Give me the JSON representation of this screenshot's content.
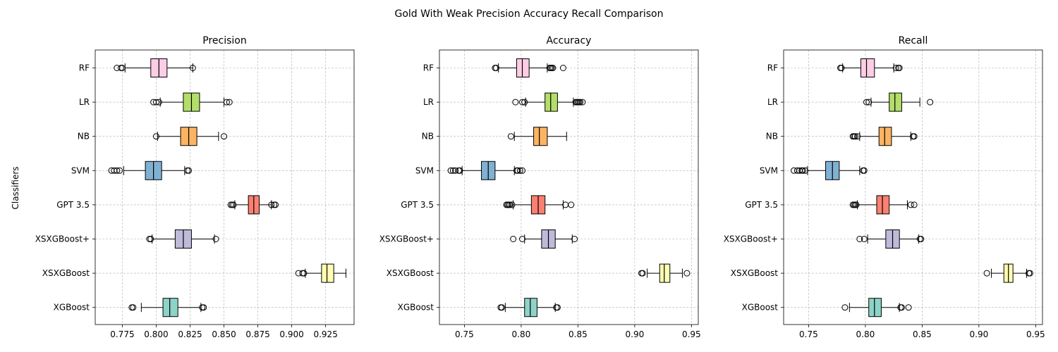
{
  "figure": {
    "suptitle": "Gold With Weak Precision Accuracy Recall Comparison",
    "ylabel": "Classifiers"
  },
  "colors": {
    "RF": "#fccde5",
    "LR": "#b3de69",
    "NB": "#fdb462",
    "SVM": "#80b1d3",
    "GPT 3.5": "#fb8072",
    "XSXGBoost+": "#bebada",
    "XSXGBoost": "#ffffb3",
    "XGBoost": "#8dd3c7",
    "grid": "#b0b0b0"
  },
  "chart_data": [
    {
      "type": "boxplot",
      "orientation": "horizontal",
      "title": "Precision",
      "categories": [
        "RF",
        "LR",
        "NB",
        "SVM",
        "GPT 3.5",
        "XSXGBoost+",
        "XSXGBoost",
        "XGBoost"
      ],
      "xlim": [
        0.755,
        0.946
      ],
      "xticks": [
        0.775,
        0.8,
        0.825,
        0.85,
        0.875,
        0.9,
        0.925
      ],
      "xtick_labels": [
        "0.775",
        "0.800",
        "0.825",
        "0.850",
        "0.875",
        "0.900",
        "0.925"
      ],
      "grid": true,
      "boxes": [
        {
          "name": "RF",
          "whislo": 0.777,
          "q1": 0.796,
          "med": 0.802,
          "q3": 0.808,
          "whishi": 0.827,
          "fliers": [
            0.771,
            0.774,
            0.775,
            0.827
          ]
        },
        {
          "name": "LR",
          "whislo": 0.803,
          "q1": 0.82,
          "med": 0.826,
          "q3": 0.832,
          "whishi": 0.85,
          "fliers": [
            0.798,
            0.8,
            0.802,
            0.852,
            0.854
          ]
        },
        {
          "name": "NB",
          "whislo": 0.801,
          "q1": 0.818,
          "med": 0.824,
          "q3": 0.83,
          "whishi": 0.846,
          "fliers": [
            0.8,
            0.85
          ]
        },
        {
          "name": "SVM",
          "whislo": 0.776,
          "q1": 0.792,
          "med": 0.798,
          "q3": 0.804,
          "whishi": 0.821,
          "fliers": [
            0.767,
            0.769,
            0.771,
            0.773,
            0.823,
            0.824
          ]
        },
        {
          "name": "GPT 3.5",
          "whislo": 0.858,
          "q1": 0.868,
          "med": 0.872,
          "q3": 0.876,
          "whishi": 0.885,
          "fliers": [
            0.855,
            0.856,
            0.857,
            0.885,
            0.887,
            0.888
          ]
        },
        {
          "name": "XSXGBoost+",
          "whislo": 0.797,
          "q1": 0.814,
          "med": 0.82,
          "q3": 0.826,
          "whishi": 0.843,
          "fliers": [
            0.795,
            0.796,
            0.844
          ]
        },
        {
          "name": "XSXGBoost",
          "whislo": 0.91,
          "q1": 0.922,
          "med": 0.926,
          "q3": 0.931,
          "whishi": 0.94,
          "fliers": [
            0.905,
            0.908,
            0.909
          ]
        },
        {
          "name": "XGBoost",
          "whislo": 0.789,
          "q1": 0.805,
          "med": 0.81,
          "q3": 0.816,
          "whishi": 0.833,
          "fliers": [
            0.782,
            0.783,
            0.834,
            0.835
          ]
        }
      ]
    },
    {
      "type": "boxplot",
      "orientation": "horizontal",
      "title": "Accuracy",
      "categories": [
        "RF",
        "LR",
        "NB",
        "SVM",
        "GPT 3.5",
        "XSXGBoost+",
        "XSXGBoost",
        "XGBoost"
      ],
      "xlim": [
        0.728,
        0.956
      ],
      "xticks": [
        0.75,
        0.8,
        0.85,
        0.9,
        0.95
      ],
      "xtick_labels": [
        "0.75",
        "0.80",
        "0.85",
        "0.90",
        "0.95"
      ],
      "grid": true,
      "boxes": [
        {
          "name": "RF",
          "whislo": 0.78,
          "q1": 0.796,
          "med": 0.801,
          "q3": 0.807,
          "whishi": 0.823,
          "fliers": [
            0.777,
            0.778,
            0.825,
            0.826,
            0.827,
            0.828,
            0.837
          ]
        },
        {
          "name": "LR",
          "whislo": 0.804,
          "q1": 0.821,
          "med": 0.826,
          "q3": 0.832,
          "whishi": 0.846,
          "fliers": [
            0.795,
            0.801,
            0.803,
            0.848,
            0.849,
            0.85,
            0.851,
            0.852,
            0.854
          ]
        },
        {
          "name": "NB",
          "whislo": 0.794,
          "q1": 0.811,
          "med": 0.816,
          "q3": 0.823,
          "whishi": 0.84,
          "fliers": [
            0.791
          ]
        },
        {
          "name": "SVM",
          "whislo": 0.748,
          "q1": 0.765,
          "med": 0.771,
          "q3": 0.777,
          "whishi": 0.794,
          "fliers": [
            0.738,
            0.74,
            0.742,
            0.745,
            0.746,
            0.796,
            0.797,
            0.799,
            0.801
          ]
        },
        {
          "name": "GPT 3.5",
          "whislo": 0.793,
          "q1": 0.809,
          "med": 0.815,
          "q3": 0.821,
          "whishi": 0.837,
          "fliers": [
            0.787,
            0.788,
            0.789,
            0.79,
            0.792,
            0.839,
            0.844
          ]
        },
        {
          "name": "XSXGBoost+",
          "whislo": 0.803,
          "q1": 0.818,
          "med": 0.824,
          "q3": 0.83,
          "whishi": 0.845,
          "fliers": [
            0.793,
            0.801,
            0.847
          ]
        },
        {
          "name": "XSXGBoost",
          "whislo": 0.911,
          "q1": 0.922,
          "med": 0.926,
          "q3": 0.931,
          "whishi": 0.942,
          "fliers": [
            0.906,
            0.907,
            0.946
          ]
        },
        {
          "name": "XGBoost",
          "whislo": 0.786,
          "q1": 0.803,
          "med": 0.808,
          "q3": 0.814,
          "whishi": 0.83,
          "fliers": [
            0.782,
            0.783,
            0.831,
            0.832
          ]
        }
      ]
    },
    {
      "type": "boxplot",
      "orientation": "horizontal",
      "title": "Recall",
      "categories": [
        "RF",
        "LR",
        "NB",
        "SVM",
        "GPT 3.5",
        "XSXGBoost+",
        "XSXGBoost",
        "XGBoost"
      ],
      "xlim": [
        0.728,
        0.956
      ],
      "xticks": [
        0.75,
        0.8,
        0.85,
        0.9,
        0.95
      ],
      "xtick_labels": [
        "0.75",
        "0.80",
        "0.85",
        "0.90",
        "0.95"
      ],
      "grid": true,
      "boxes": [
        {
          "name": "RF",
          "whislo": 0.78,
          "q1": 0.796,
          "med": 0.801,
          "q3": 0.808,
          "whishi": 0.825,
          "fliers": [
            0.778,
            0.779,
            0.827,
            0.829,
            0.83
          ]
        },
        {
          "name": "LR",
          "whislo": 0.805,
          "q1": 0.821,
          "med": 0.826,
          "q3": 0.832,
          "whishi": 0.848,
          "fliers": [
            0.801,
            0.803,
            0.857
          ]
        },
        {
          "name": "NB",
          "whislo": 0.795,
          "q1": 0.812,
          "med": 0.817,
          "q3": 0.823,
          "whishi": 0.84,
          "fliers": [
            0.789,
            0.79,
            0.791,
            0.793,
            0.842,
            0.843
          ]
        },
        {
          "name": "SVM",
          "whislo": 0.749,
          "q1": 0.765,
          "med": 0.771,
          "q3": 0.777,
          "whishi": 0.795,
          "fliers": [
            0.737,
            0.74,
            0.742,
            0.744,
            0.745,
            0.747,
            0.798,
            0.799
          ]
        },
        {
          "name": "GPT 3.5",
          "whislo": 0.793,
          "q1": 0.81,
          "med": 0.815,
          "q3": 0.821,
          "whishi": 0.837,
          "fliers": [
            0.789,
            0.79,
            0.791,
            0.792,
            0.84,
            0.843
          ]
        },
        {
          "name": "XSXGBoost+",
          "whislo": 0.802,
          "q1": 0.818,
          "med": 0.824,
          "q3": 0.83,
          "whishi": 0.847,
          "fliers": [
            0.795,
            0.799,
            0.848,
            0.849
          ]
        },
        {
          "name": "XSXGBoost",
          "whislo": 0.911,
          "q1": 0.922,
          "med": 0.926,
          "q3": 0.93,
          "whishi": 0.942,
          "fliers": [
            0.907,
            0.944,
            0.945
          ]
        },
        {
          "name": "XGBoost",
          "whislo": 0.786,
          "q1": 0.803,
          "med": 0.808,
          "q3": 0.814,
          "whishi": 0.83,
          "fliers": [
            0.782,
            0.831,
            0.832,
            0.838
          ]
        }
      ]
    }
  ]
}
